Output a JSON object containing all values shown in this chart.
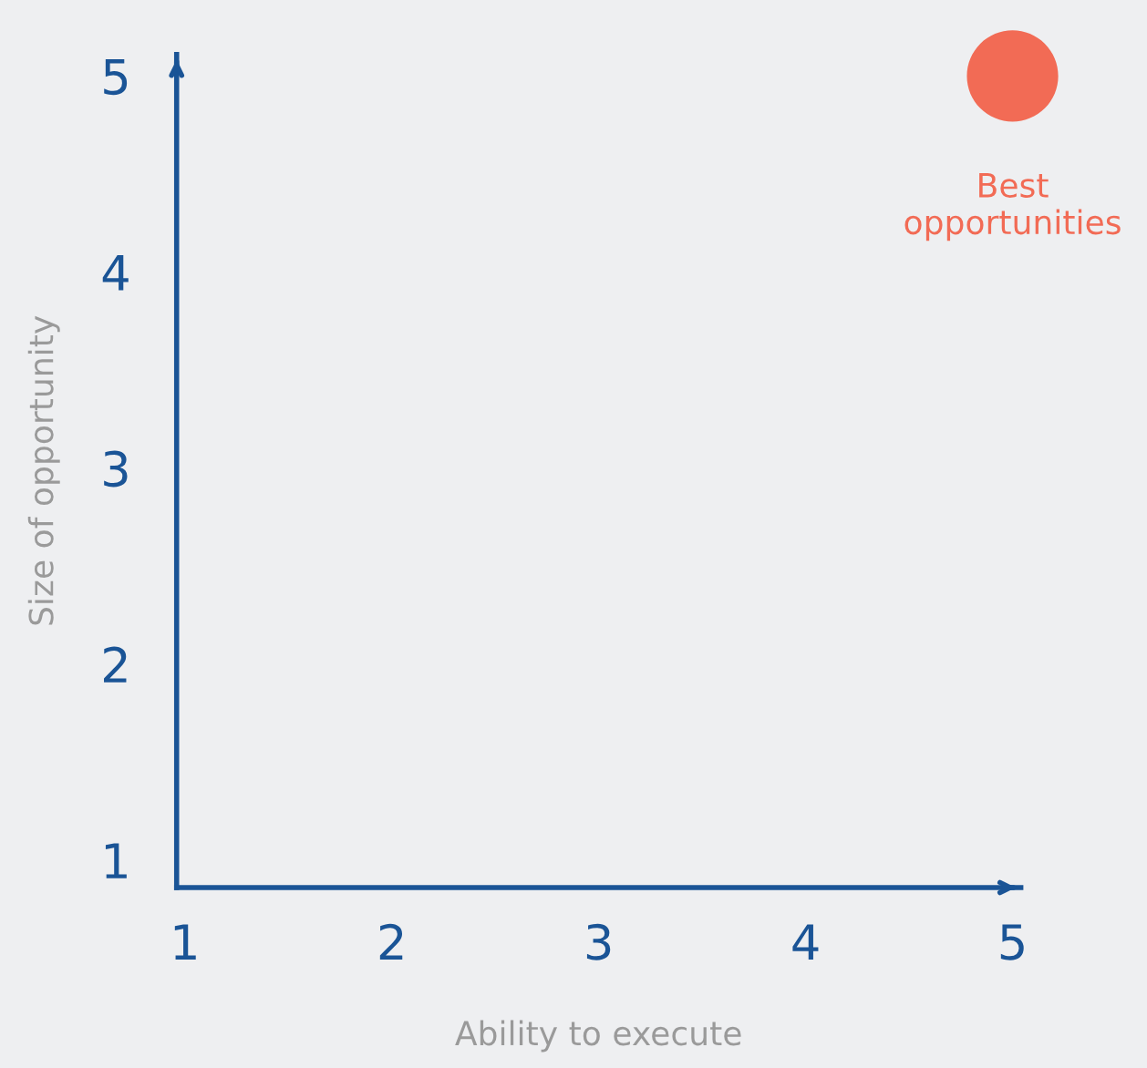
{
  "chart_data": {
    "type": "scatter",
    "xlabel": "Ability to execute",
    "ylabel": "Size of opportunity",
    "x": [
      5
    ],
    "values": [
      5
    ],
    "color": "#f26b55",
    "xlim": [
      0.96,
      5.04
    ],
    "ylim": [
      0.86,
      5.11
    ],
    "xticks": [
      1,
      2,
      3,
      4,
      5
    ],
    "yticks": [
      1,
      2,
      3,
      4,
      5
    ],
    "annotations": [
      {
        "text": "Best\nopportunities",
        "x": 5,
        "y": 5
      }
    ],
    "grid": false,
    "legend": false,
    "marker": "circle"
  }
}
